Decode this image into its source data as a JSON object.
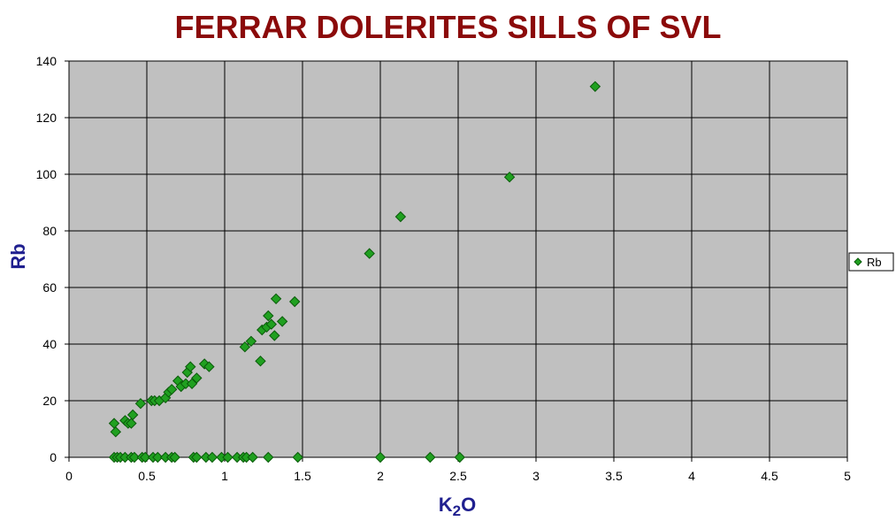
{
  "colors": {
    "title": "#8b0a0a",
    "plot_bg": "#c0c0c0",
    "grid": "#000000",
    "marker_fill": "#20a020",
    "marker_stroke": "#0a5a0a",
    "axis_title": "#1f1f8f"
  },
  "chart_data": {
    "type": "scatter",
    "title": "FERRAR DOLERITES SILLS OF SVL",
    "xlabel_main": "K",
    "xlabel_sub": "2",
    "xlabel_end": "O",
    "ylabel": "Rb",
    "xlim": [
      0,
      5
    ],
    "ylim": [
      0,
      140
    ],
    "xticks": [
      "0",
      "0.5",
      "1",
      "1.5",
      "2",
      "2.5",
      "3",
      "3.5",
      "4",
      "4.5",
      "5"
    ],
    "yticks": [
      "0",
      "20",
      "40",
      "60",
      "80",
      "100",
      "120",
      "140"
    ],
    "grid": true,
    "legend_position": "right",
    "series": [
      {
        "name": "Rb",
        "points": [
          [
            0.29,
            12
          ],
          [
            0.3,
            9
          ],
          [
            0.36,
            13
          ],
          [
            0.38,
            12
          ],
          [
            0.4,
            12
          ],
          [
            0.41,
            15
          ],
          [
            0.46,
            19
          ],
          [
            0.53,
            20
          ],
          [
            0.55,
            20
          ],
          [
            0.58,
            20
          ],
          [
            0.62,
            21
          ],
          [
            0.64,
            23
          ],
          [
            0.66,
            24
          ],
          [
            0.7,
            27
          ],
          [
            0.72,
            25
          ],
          [
            0.75,
            26
          ],
          [
            0.76,
            30
          ],
          [
            0.78,
            32
          ],
          [
            0.79,
            26
          ],
          [
            0.82,
            28
          ],
          [
            0.87,
            33
          ],
          [
            0.9,
            32
          ],
          [
            1.13,
            39
          ],
          [
            1.17,
            41
          ],
          [
            1.23,
            34
          ],
          [
            1.24,
            45
          ],
          [
            1.27,
            46
          ],
          [
            1.28,
            50
          ],
          [
            1.3,
            47
          ],
          [
            1.32,
            43
          ],
          [
            1.33,
            56
          ],
          [
            1.37,
            48
          ],
          [
            1.45,
            55
          ],
          [
            1.93,
            72
          ],
          [
            2.13,
            85
          ],
          [
            2.83,
            99
          ],
          [
            3.38,
            131
          ],
          [
            0.29,
            0
          ],
          [
            0.31,
            0
          ],
          [
            0.33,
            0
          ],
          [
            0.36,
            0
          ],
          [
            0.4,
            0
          ],
          [
            0.42,
            0
          ],
          [
            0.47,
            0
          ],
          [
            0.49,
            0
          ],
          [
            0.54,
            0
          ],
          [
            0.57,
            0
          ],
          [
            0.62,
            0
          ],
          [
            0.66,
            0
          ],
          [
            0.68,
            0
          ],
          [
            0.8,
            0
          ],
          [
            0.82,
            0
          ],
          [
            0.88,
            0
          ],
          [
            0.92,
            0
          ],
          [
            0.98,
            0
          ],
          [
            1.02,
            0
          ],
          [
            1.08,
            0
          ],
          [
            1.12,
            0
          ],
          [
            1.14,
            0
          ],
          [
            1.18,
            0
          ],
          [
            1.28,
            0
          ],
          [
            1.47,
            0
          ],
          [
            2.0,
            0
          ],
          [
            2.32,
            0
          ],
          [
            2.51,
            0
          ]
        ]
      }
    ]
  }
}
